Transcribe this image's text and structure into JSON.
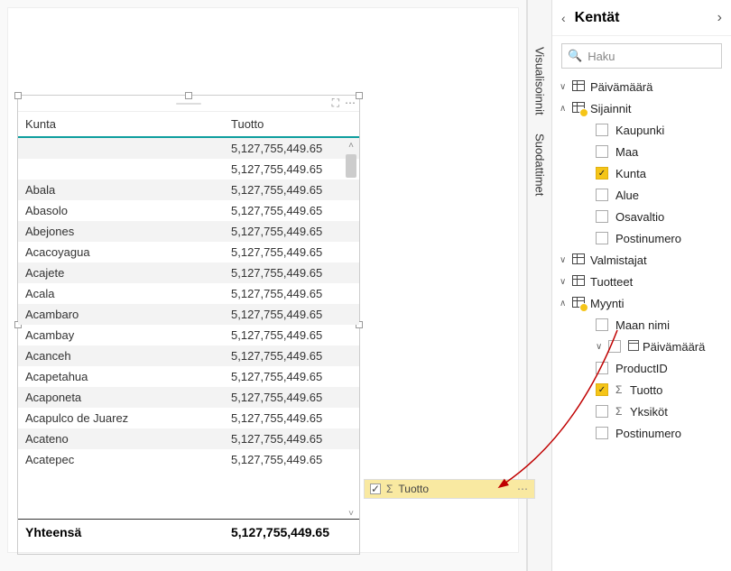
{
  "table": {
    "columns": {
      "a": "Kunta",
      "b": "Tuotto"
    },
    "rows": [
      {
        "k": "",
        "v": "5,127,755,449.65"
      },
      {
        "k": "",
        "v": "5,127,755,449.65"
      },
      {
        "k": "Abala",
        "v": "5,127,755,449.65"
      },
      {
        "k": "Abasolo",
        "v": "5,127,755,449.65"
      },
      {
        "k": "Abejones",
        "v": "5,127,755,449.65"
      },
      {
        "k": "Acacoyagua",
        "v": "5,127,755,449.65"
      },
      {
        "k": "Acajete",
        "v": "5,127,755,449.65"
      },
      {
        "k": "Acala",
        "v": "5,127,755,449.65"
      },
      {
        "k": "Acambaro",
        "v": "5,127,755,449.65"
      },
      {
        "k": "Acambay",
        "v": "5,127,755,449.65"
      },
      {
        "k": "Acanceh",
        "v": "5,127,755,449.65"
      },
      {
        "k": "Acapetahua",
        "v": "5,127,755,449.65"
      },
      {
        "k": "Acaponeta",
        "v": "5,127,755,449.65"
      },
      {
        "k": "Acapulco de Juarez",
        "v": "5,127,755,449.65"
      },
      {
        "k": "Acateno",
        "v": "5,127,755,449.65"
      },
      {
        "k": "Acatepec",
        "v": "5,127,755,449.65"
      }
    ],
    "total_label": "Yhteensä",
    "total_value": "5,127,755,449.65"
  },
  "drag_pill": {
    "label": "Tuotto"
  },
  "vtabs": {
    "vis": "Visualisoinnit",
    "filt": "Suodattimet"
  },
  "fields_panel": {
    "title": "Kentät",
    "search_placeholder": "Haku",
    "tables": {
      "paivamaara": "Päivämäärä",
      "sijainnit": "Sijainnit",
      "valmistajat": "Valmistajat",
      "tuotteet": "Tuotteet",
      "myynti": "Myynti"
    },
    "sijainnit_fields": {
      "kaupunki": "Kaupunki",
      "maa": "Maa",
      "kunta": "Kunta",
      "alue": "Alue",
      "osavaltio": "Osavaltio",
      "postinumero": "Postinumero"
    },
    "myynti_fields": {
      "maan_nimi": "Maan nimi",
      "paivamaara": "Päivämäärä",
      "productid": "ProductID",
      "tuotto": "Tuotto",
      "yksikot": "Yksiköt",
      "postinumero": "Postinumero"
    }
  }
}
